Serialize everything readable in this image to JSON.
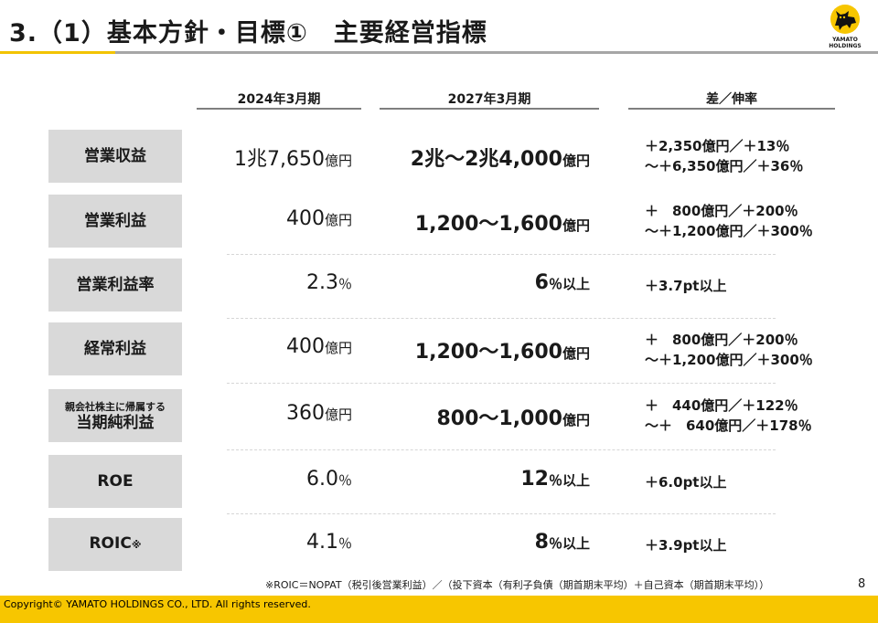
{
  "header": {
    "title": "3.（1）基本方針・目標①　主要経営指標",
    "logo_text_line1": "YAMATO",
    "logo_text_line2": "HOLDINGS",
    "logo_icon": "black-cat-icon"
  },
  "columns": {
    "c2024": "2024年3月期",
    "c2027": "2027年3月期",
    "diff": "差／伸率"
  },
  "rows": [
    {
      "label": "営業収益",
      "v2024": "1兆7,650",
      "v2024_unit": "億円",
      "v2027": "2兆～2兆4,000",
      "v2027_unit": "億円",
      "diff1": "＋2,350億円／＋13％",
      "diff2": "～＋6,350億円／＋36％"
    },
    {
      "label": "営業利益",
      "v2024": "400",
      "v2024_unit": "億円",
      "v2027": "1,200～1,600",
      "v2027_unit": "億円",
      "diff1": "＋　800億円／＋200％",
      "diff2": "～＋1,200億円／＋300％"
    },
    {
      "label": "営業利益率",
      "v2024": "2.3",
      "v2024_unit": "％",
      "v2027": "6",
      "v2027_unit": "％以上",
      "diff1": "＋3.7pt以上"
    },
    {
      "label": "経常利益",
      "v2024": "400",
      "v2024_unit": "億円",
      "v2027": "1,200～1,600",
      "v2027_unit": "億円",
      "diff1": "＋　800億円／＋200％",
      "diff2": "～＋1,200億円／＋300％"
    },
    {
      "label_small": "親会社株主に帰属する",
      "label": "当期純利益",
      "v2024": "360",
      "v2024_unit": "億円",
      "v2027": "800～1,000",
      "v2027_unit": "億円",
      "diff1": "＋　440億円／＋122％",
      "diff2": "～＋　640億円／＋178％"
    },
    {
      "label": "ROE",
      "v2024": "6.0",
      "v2024_unit": "％",
      "v2027": "12",
      "v2027_unit": "％以上",
      "diff1": "＋6.0pt以上"
    },
    {
      "label": "ROIC",
      "label_mark": "※",
      "v2024": "4.1",
      "v2024_unit": "％",
      "v2027": "8",
      "v2027_unit": "％以上",
      "diff1": "＋3.9pt以上"
    }
  ],
  "footer": {
    "footnote": "※ROIC＝NOPAT（税引後営業利益）／（投下資本（有利子負債（期首期末平均）＋自己資本（期首期末平均））",
    "page": "8",
    "copyright": "Copyright© YAMATO HOLDINGS CO., LTD. All rights reserved.",
    "accent_color": "#f7c600"
  }
}
